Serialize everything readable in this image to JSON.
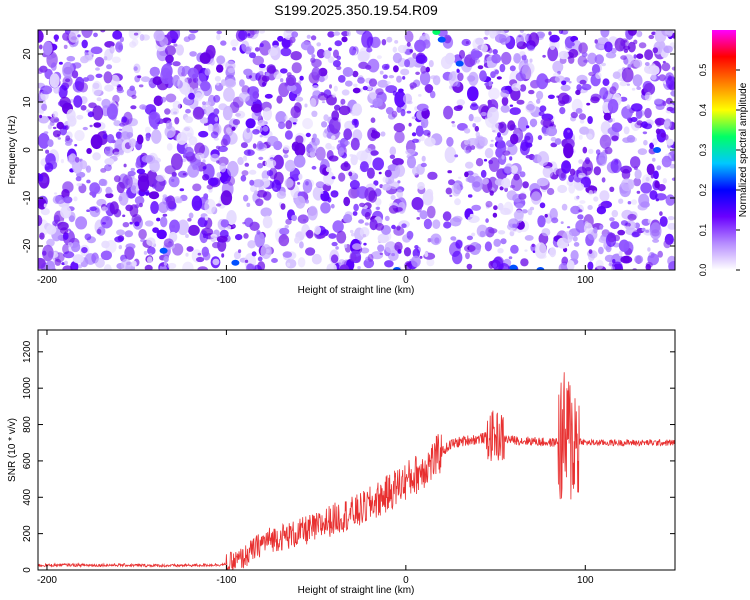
{
  "title": "S199.2025.350.19.54.R09",
  "chart_data": [
    {
      "type": "heatmap",
      "xlabel": "Height of straight line (km)",
      "ylabel": "Frequency (Hz)",
      "xlim": [
        -205,
        150
      ],
      "ylim": [
        -25,
        25
      ],
      "xticks": [
        -200,
        -100,
        0,
        100
      ],
      "yticks": [
        -20,
        -10,
        0,
        10,
        20
      ],
      "colorbar": {
        "label": "Normalized spectral amplitude",
        "range": [
          0,
          0.6
        ],
        "ticks": [
          "0.0",
          "0.1",
          "0.2",
          "0.3",
          "0.4",
          "0.5"
        ],
        "colors": [
          "#ffffff",
          "#b68cff",
          "#6a00ff",
          "#0000ff",
          "#00c8ff",
          "#00ff66",
          "#ffff00",
          "#ff8000",
          "#ff0000",
          "#ff00ff"
        ]
      },
      "grid": false
    },
    {
      "type": "line",
      "xlabel": "Height of straight line (km)",
      "ylabel": "SNR (10 * v/v)",
      "xlim": [
        -205,
        150
      ],
      "ylim": [
        0,
        1320
      ],
      "xticks": [
        -200,
        -100,
        0,
        100
      ],
      "yticks": [
        0,
        200,
        400,
        600,
        800,
        1000,
        1200
      ],
      "color": "#e83030",
      "grid": false,
      "series": [
        {
          "x": [
            -205,
            -190,
            -175,
            -160,
            -145,
            -130,
            -115,
            -100,
            -95,
            -90,
            -85,
            -80,
            -75,
            -70,
            -65,
            -60,
            -55,
            -50,
            -45,
            -40,
            -35,
            -30,
            -25,
            -20,
            -15,
            -10,
            -5,
            0,
            5,
            10,
            15,
            20,
            25,
            30,
            35,
            40,
            45,
            50,
            55,
            60,
            65,
            70,
            75,
            80,
            85,
            90,
            95,
            100,
            110,
            120,
            130,
            140,
            150
          ],
          "values": [
            25,
            28,
            26,
            27,
            25,
            24,
            26,
            30,
            45,
            70,
            110,
            150,
            170,
            180,
            190,
            200,
            220,
            230,
            260,
            280,
            300,
            310,
            330,
            360,
            390,
            420,
            460,
            490,
            520,
            560,
            600,
            650,
            690,
            705,
            715,
            720,
            730,
            740,
            720,
            715,
            710,
            710,
            705,
            700,
            705,
            720,
            720,
            700,
            700,
            700,
            700,
            700,
            700
          ]
        }
      ]
    }
  ]
}
